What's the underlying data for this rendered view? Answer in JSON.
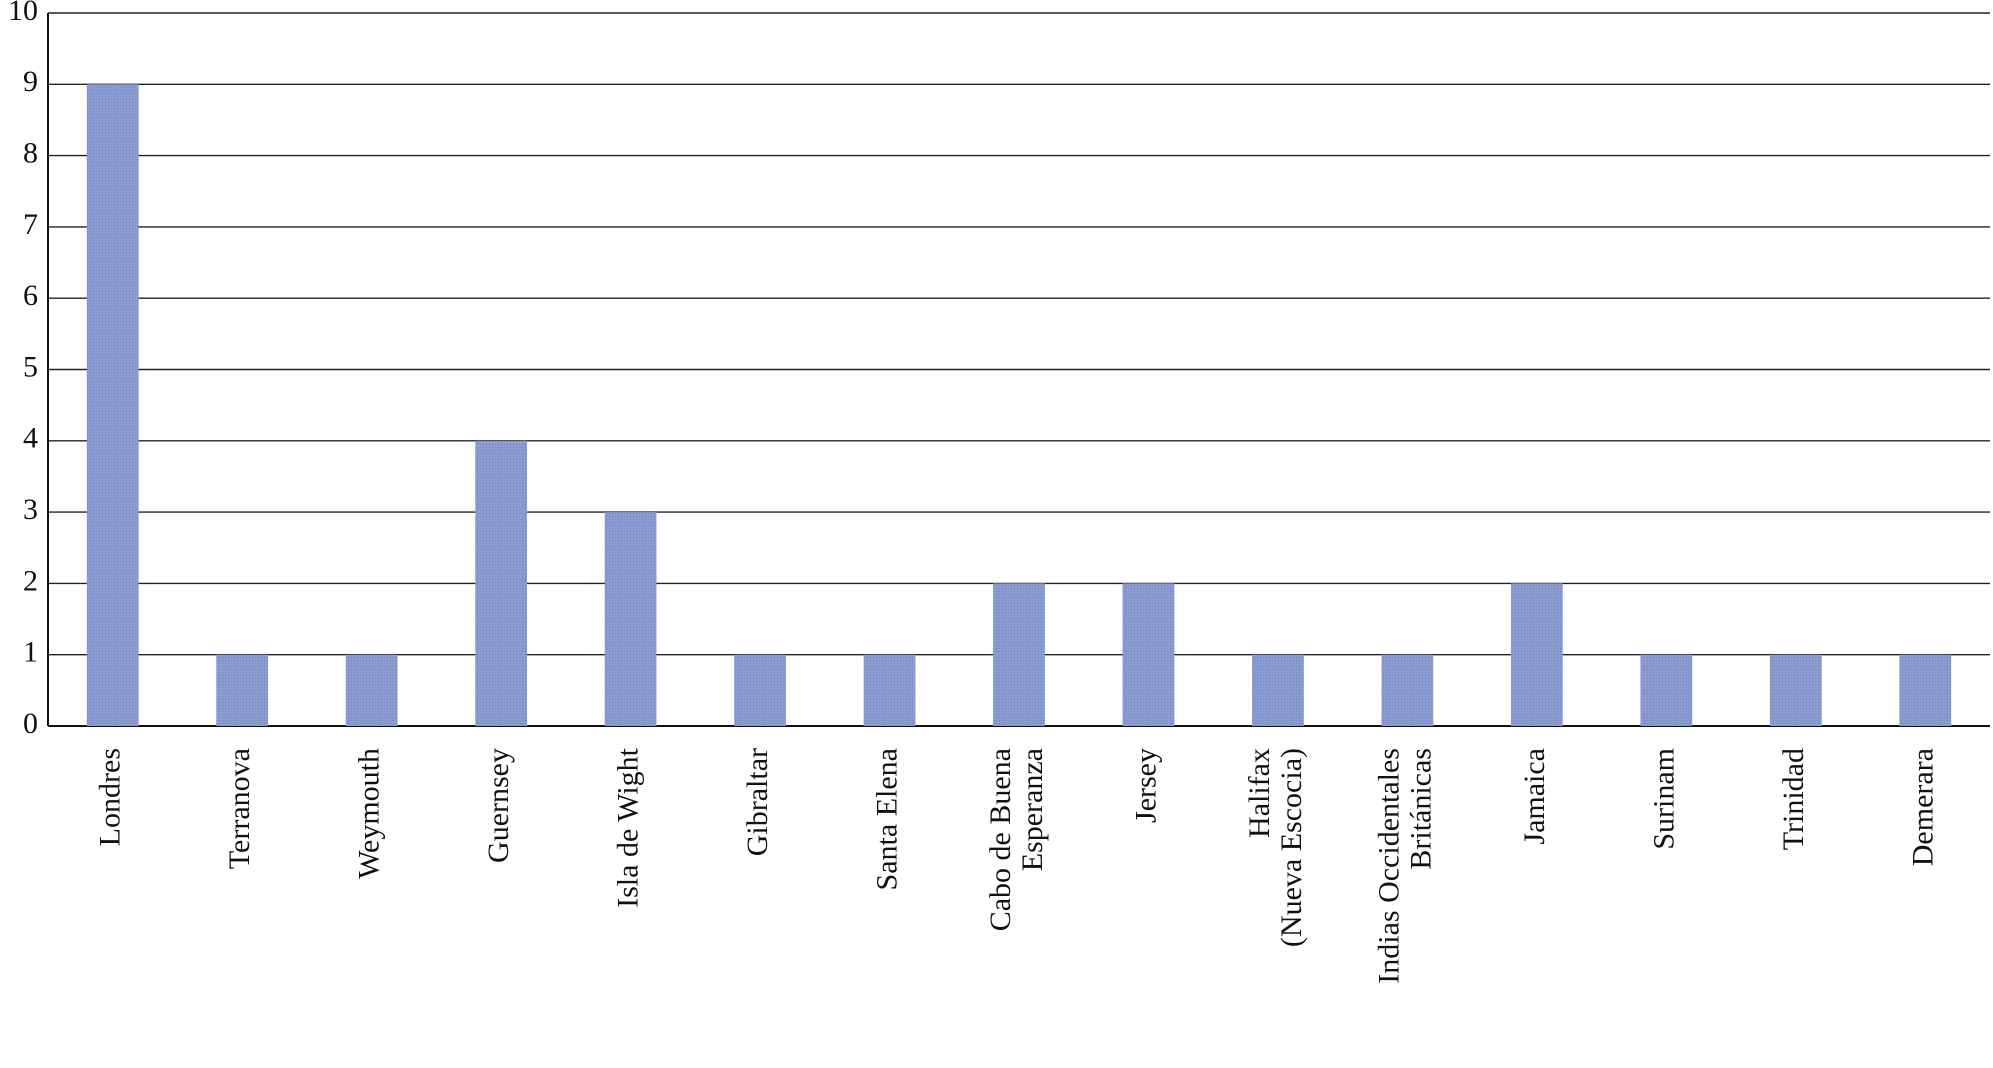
{
  "chart_data": {
    "type": "bar",
    "categories": [
      "Londres",
      "Terranova",
      "Weymouth",
      "Guernsey",
      "Isla de Wight",
      "Gibraltar",
      "Santa Elena",
      "Cabo de Buena\nEsperanza",
      "Jersey",
      "Halifax\n(Nueva Escocia)",
      "Indias Occidentales\nBritánicas",
      "Jamaica",
      "Surinam",
      "Trinidad",
      "Demerara"
    ],
    "values": [
      9,
      1,
      1,
      4,
      3,
      1,
      1,
      2,
      2,
      1,
      1,
      2,
      1,
      1,
      1
    ],
    "color": "#8a9bd0",
    "ylim": [
      0,
      10
    ],
    "yticks": [
      0,
      1,
      2,
      3,
      4,
      5,
      6,
      7,
      8,
      9,
      10
    ],
    "grid": true
  }
}
